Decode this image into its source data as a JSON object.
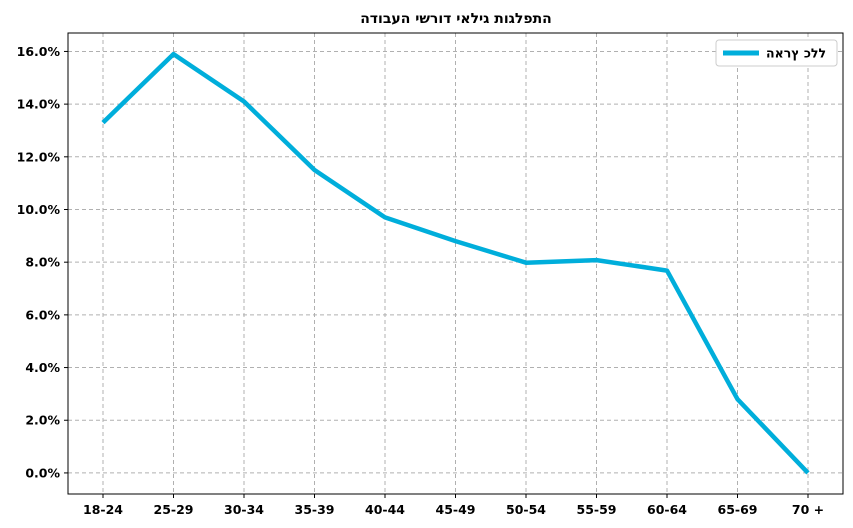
{
  "chart_data": {
    "type": "line",
    "title": "התפלגות גילאי דורשי העבודה",
    "categories": [
      "18-24",
      "25-29",
      "30-34",
      "35-39",
      "40-44",
      "45-49",
      "50-54",
      "55-59",
      "60-64",
      "65-69",
      "70 +"
    ],
    "series": [
      {
        "name": "ללכ ץראה",
        "color": "#00AEDB",
        "values": [
          13.3,
          15.9,
          14.1,
          11.5,
          9.7,
          8.8,
          7.98,
          8.08,
          7.68,
          2.8,
          0.0
        ]
      }
    ],
    "yticks": [
      "0.0%",
      "2.0%",
      "4.0%",
      "6.0%",
      "8.0%",
      "10.0%",
      "12.0%",
      "14.0%",
      "16.0%"
    ],
    "ylim": [
      -0.8,
      16.7
    ],
    "y_unit": "%",
    "grid": true,
    "grid_style": "dashed",
    "legend_position": "top-right"
  }
}
